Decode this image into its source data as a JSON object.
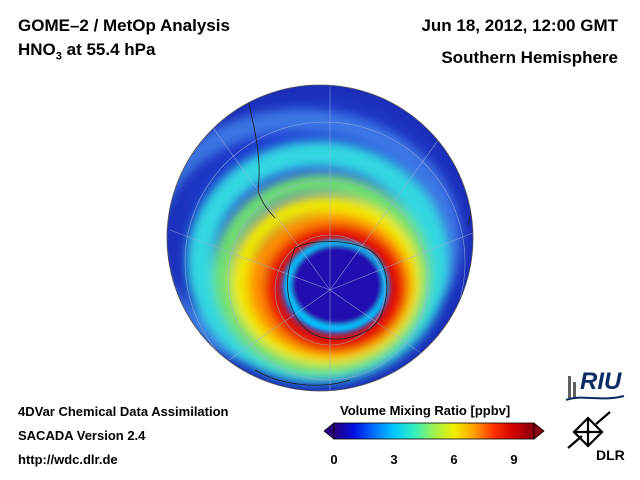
{
  "header": {
    "title_line1": "GOME–2 / MetOp Analysis",
    "species": "HNO",
    "species_subscript": "3",
    "species_level": " at 55.4 hPa",
    "datetime": "Jun 18, 2012, 12:00 GMT",
    "region": "Southern Hemisphere"
  },
  "footer": {
    "line1": "4DVar Chemical Data Assimilation",
    "line2": "SACADA Version 2.4",
    "line3": "http://wdc.dlr.de"
  },
  "colorbar": {
    "title": "Volume Mixing Ratio [ppbv]",
    "min": 0,
    "max": 10,
    "ticks": [
      "0",
      "3",
      "6",
      "9"
    ],
    "tick_values": [
      0,
      3,
      6,
      9
    ],
    "colors": [
      "#2a0080",
      "#0010e0",
      "#0070ff",
      "#00c8ff",
      "#30f0c0",
      "#a0f050",
      "#f0f000",
      "#ffa000",
      "#ff3000",
      "#d00000",
      "#8a0010"
    ]
  },
  "logos": {
    "riu": "RIU",
    "dlr": "DLR"
  },
  "map": {
    "projection": "orthographic, south polar",
    "colors": {
      "background_low": "#2040d8",
      "vortex_core": "#1a10b0",
      "vortex_edge": "#00c8ff",
      "collar_peak": "#e80000"
    }
  }
}
